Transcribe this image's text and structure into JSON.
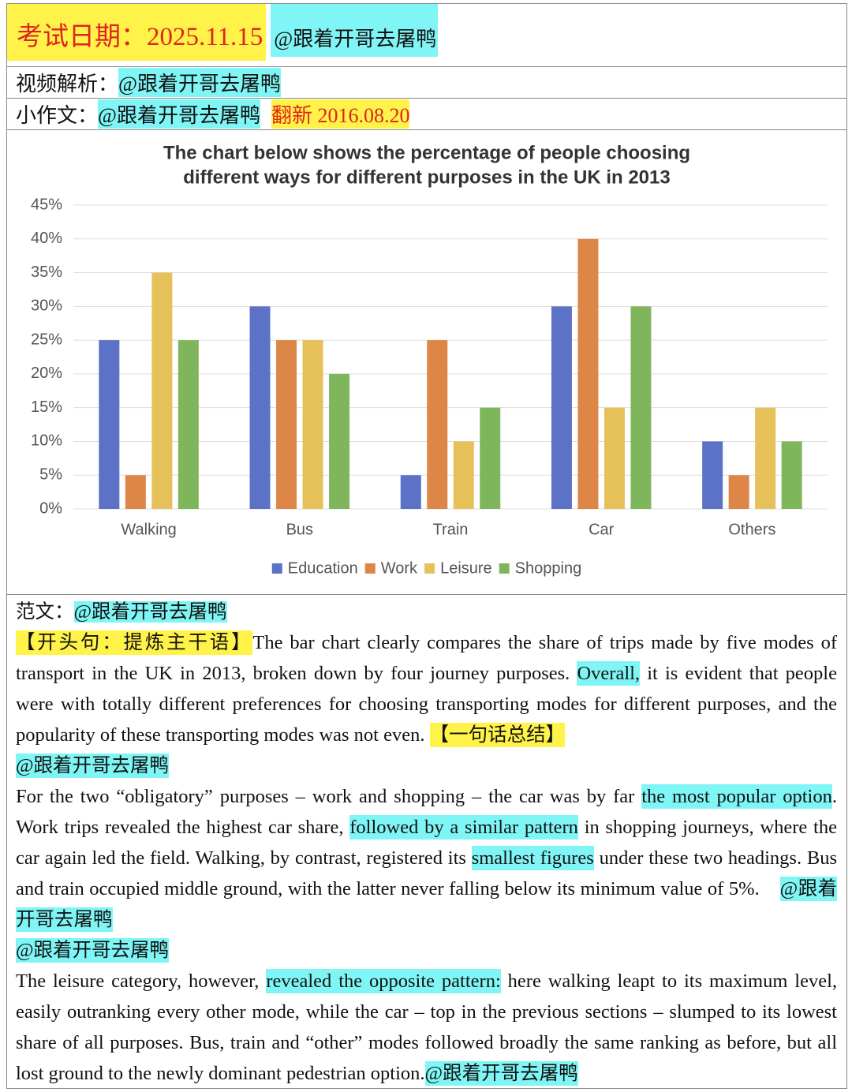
{
  "header": {
    "exam_date": "考试日期：2025.11.15",
    "exam_handle": "@跟着开哥去屠鸭",
    "video_label": "视频解析：",
    "video_handle": "@跟着开哥去屠鸭",
    "essay_label": "小作文：",
    "essay_handle": "@跟着开哥去屠鸭",
    "renewed": "翻新  2016.08.20"
  },
  "chart_data": {
    "type": "bar",
    "title": [
      "The chart below shows the percentage of people choosing",
      "different ways for different purposes  in the UK in 2013"
    ],
    "categories": [
      "Walking",
      "Bus",
      "Train",
      "Car",
      "Others"
    ],
    "series": [
      {
        "name": "Education",
        "color": "#5b72c6",
        "values": [
          25,
          30,
          5,
          30,
          10
        ]
      },
      {
        "name": "Work",
        "color": "#dd8648",
        "values": [
          5,
          25,
          25,
          40,
          5
        ]
      },
      {
        "name": "Leisure",
        "color": "#e6c15a",
        "values": [
          35,
          25,
          10,
          15,
          15
        ]
      },
      {
        "name": "Shopping",
        "color": "#80b65b",
        "values": [
          25,
          20,
          15,
          30,
          10
        ]
      }
    ],
    "ylim": [
      0,
      45
    ],
    "yticks": [
      {
        "value": 0,
        "label": "0%"
      },
      {
        "value": 5,
        "label": "5%"
      },
      {
        "value": 10,
        "label": "10%"
      },
      {
        "value": 15,
        "label": "15%"
      },
      {
        "value": 20,
        "label": "20%"
      },
      {
        "value": 25,
        "label": "25%"
      },
      {
        "value": 30,
        "label": "30%"
      },
      {
        "value": 35,
        "label": "35%"
      },
      {
        "value": 40,
        "label": "40%"
      },
      {
        "value": 45,
        "label": "45%"
      }
    ],
    "grid": true,
    "legend": "bottom"
  },
  "essay": {
    "label": "范文：",
    "handle": "@跟着开哥去屠鸭",
    "blocks": [
      [
        {
          "text": "【开头句：提炼主干语】",
          "highlight": "#fff34a"
        },
        {
          "text": "The bar chart clearly compares the share of trips made by five modes of transport in the UK in 2013, broken down by four journey purposes. "
        },
        {
          "text": "Overall,",
          "highlight": "#80f5f5"
        },
        {
          "text": " it is evident that people were with totally different preferences for choosing transporting modes for different purposes, and the popularity of these transporting modes was not even. "
        },
        {
          "text": "【一句话总结】",
          "highlight": "#fff34a"
        }
      ],
      [
        {
          "text": "@跟着开哥去屠鸭",
          "highlight": "#80f5f5"
        }
      ],
      [
        {
          "text": "For the two “obligatory” purposes – work and shopping – the car was by far "
        },
        {
          "text": "the most popular option",
          "highlight": "#80f5f5"
        },
        {
          "text": ". Work trips revealed the highest car share, "
        },
        {
          "text": "followed by a similar pattern",
          "highlight": "#80f5f5"
        },
        {
          "text": " in shopping journeys, where the car again led the field. Walking, by contrast, registered its "
        },
        {
          "text": "smallest figures",
          "highlight": "#80f5f5"
        },
        {
          "text": " under these two headings. Bus and train occupied middle ground, with the latter never falling below its minimum value of 5%.    "
        },
        {
          "text": "@跟着开哥去屠鸭",
          "highlight": "#80f5f5"
        }
      ],
      [
        {
          "text": "@跟着开哥去屠鸭",
          "highlight": "#80f5f5"
        }
      ],
      [
        {
          "text": "The leisure category, however, "
        },
        {
          "text": "revealed the opposite pattern:",
          "highlight": "#80f5f5"
        },
        {
          "text": " here walking leapt to its maximum level, easily outranking every other mode, while the car – top in the previous sections – slumped to its lowest share of all purposes. Bus, train and “other” modes followed broadly the same ranking as before, but all lost ground to the newly dominant pedestrian option."
        },
        {
          "text": "@跟着开哥去屠鸭",
          "highlight": "#80f5f5"
        }
      ]
    ]
  }
}
